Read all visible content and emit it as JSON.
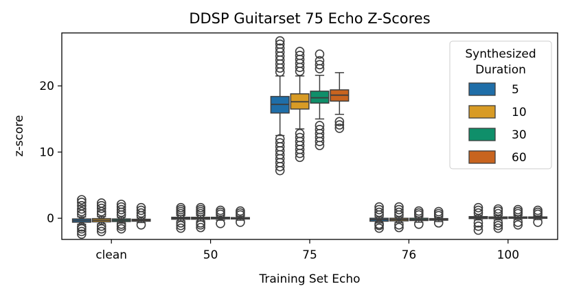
{
  "chart_data": {
    "type": "box",
    "title": "DDSP Guitarset 75 Echo Z-Scores",
    "xlabel": "Training Set Echo",
    "ylabel": "z-score",
    "categories": [
      "clean",
      "50",
      "75",
      "76",
      "100"
    ],
    "ylim": [
      -3.2,
      28
    ],
    "yticks": [
      0,
      10,
      20
    ],
    "legend": {
      "title_lines": [
        "Synthesized",
        "Duration"
      ],
      "placement": "top-right"
    },
    "series": [
      {
        "name": "5",
        "color": "#1f6ea8",
        "boxes": [
          {
            "q1": -0.6,
            "median": -0.35,
            "q3": -0.1,
            "whisker_low": -0.9,
            "whisker_high": 0.2,
            "outliers": [
              -2.4,
              -2.0,
              -1.6,
              -1.3,
              0.6,
              1.0,
              1.4,
              1.9,
              2.4,
              2.8
            ]
          },
          {
            "q1": -0.15,
            "median": 0.0,
            "q3": 0.15,
            "whisker_low": -0.4,
            "whisker_high": 0.4,
            "outliers": [
              -1.5,
              -1.1,
              -0.7,
              0.7,
              1.0,
              1.3,
              1.6
            ]
          },
          {
            "q1": 15.9,
            "median": 17.2,
            "q3": 18.4,
            "whisker_low": 12.5,
            "whisker_high": 21.5,
            "outliers": [
              7.2,
              7.8,
              8.4,
              9.0,
              9.6,
              10.2,
              10.8,
              11.4,
              12.0,
              22.1,
              22.7,
              23.3,
              23.9,
              24.5,
              25.1,
              25.7,
              26.3,
              26.8
            ]
          },
          {
            "q1": -0.45,
            "median": -0.2,
            "q3": 0.0,
            "whisker_low": -0.7,
            "whisker_high": 0.2,
            "outliers": [
              -1.5,
              -1.1,
              -0.9,
              0.5,
              0.9,
              1.3,
              1.7
            ]
          },
          {
            "q1": -0.05,
            "median": 0.1,
            "q3": 0.25,
            "whisker_low": -0.25,
            "whisker_high": 0.45,
            "outliers": [
              -1.8,
              -1.2,
              -0.7,
              0.8,
              1.2,
              1.6
            ]
          }
        ]
      },
      {
        "name": "10",
        "color": "#d89b25",
        "boxes": [
          {
            "q1": -0.55,
            "median": -0.3,
            "q3": -0.05,
            "whisker_low": -0.85,
            "whisker_high": 0.25,
            "outliers": [
              -2.0,
              -1.6,
              -1.2,
              0.6,
              1.0,
              1.5,
              1.9,
              2.3
            ]
          },
          {
            "q1": -0.15,
            "median": 0.0,
            "q3": 0.15,
            "whisker_low": -0.4,
            "whisker_high": 0.4,
            "outliers": [
              -1.4,
              -1.0,
              -0.7,
              0.7,
              1.0,
              1.3,
              1.6
            ]
          },
          {
            "q1": 16.5,
            "median": 17.6,
            "q3": 18.8,
            "whisker_low": 13.5,
            "whisker_high": 21.5,
            "outliers": [
              9.2,
              9.8,
              10.4,
              11.0,
              11.6,
              12.2,
              12.8,
              22.2,
              22.8,
              23.4,
              24.0,
              24.6,
              25.2
            ]
          },
          {
            "q1": -0.4,
            "median": -0.2,
            "q3": 0.0,
            "whisker_low": -0.65,
            "whisker_high": 0.2,
            "outliers": [
              -1.4,
              -1.0,
              0.5,
              0.9,
              1.3,
              1.7
            ]
          },
          {
            "q1": -0.05,
            "median": 0.05,
            "q3": 0.2,
            "whisker_low": -0.25,
            "whisker_high": 0.4,
            "outliers": [
              -1.5,
              -1.1,
              -0.7,
              0.7,
              1.1,
              1.4
            ]
          }
        ]
      },
      {
        "name": "30",
        "color": "#0f8f6a",
        "boxes": [
          {
            "q1": -0.5,
            "median": -0.3,
            "q3": -0.1,
            "whisker_low": -0.75,
            "whisker_high": 0.15,
            "outliers": [
              -1.6,
              -1.2,
              -0.9,
              0.5,
              0.9,
              1.3,
              1.7,
              2.1
            ]
          },
          {
            "q1": -0.1,
            "median": 0.0,
            "q3": 0.15,
            "whisker_low": -0.3,
            "whisker_high": 0.35,
            "outliers": [
              -0.8,
              0.6,
              0.9,
              1.2
            ]
          },
          {
            "q1": 17.4,
            "median": 18.2,
            "q3": 19.2,
            "whisker_low": 15.0,
            "whisker_high": 21.6,
            "outliers": [
              11.0,
              11.6,
              12.2,
              12.8,
              13.4,
              14.0,
              22.6,
              23.2,
              23.8,
              24.8
            ]
          },
          {
            "q1": -0.35,
            "median": -0.2,
            "q3": 0.0,
            "whisker_low": -0.6,
            "whisker_high": 0.2,
            "outliers": [
              -0.9,
              0.5,
              0.8,
              1.1
            ]
          },
          {
            "q1": 0.0,
            "median": 0.1,
            "q3": 0.2,
            "whisker_low": -0.2,
            "whisker_high": 0.4,
            "outliers": [
              -1.0,
              -0.6,
              0.7,
              1.0,
              1.3
            ]
          }
        ]
      },
      {
        "name": "60",
        "color": "#c8641f",
        "boxes": [
          {
            "q1": -0.45,
            "median": -0.3,
            "q3": -0.15,
            "whisker_low": -0.65,
            "whisker_high": 0.05,
            "outliers": [
              -1.0,
              0.4,
              0.8,
              1.2,
              1.6
            ]
          },
          {
            "q1": -0.1,
            "median": 0.0,
            "q3": 0.1,
            "whisker_low": -0.3,
            "whisker_high": 0.3,
            "outliers": [
              -0.6,
              0.5,
              0.8,
              1.1
            ]
          },
          {
            "q1": 17.7,
            "median": 18.6,
            "q3": 19.4,
            "whisker_low": 15.7,
            "whisker_high": 22.0,
            "outliers": [
              13.6,
              14.1,
              14.6
            ]
          },
          {
            "q1": -0.3,
            "median": -0.2,
            "q3": -0.05,
            "whisker_low": -0.5,
            "whisker_high": 0.15,
            "outliers": [
              -0.7,
              0.4,
              0.7,
              1.0
            ]
          },
          {
            "q1": 0.0,
            "median": 0.1,
            "q3": 0.2,
            "whisker_low": -0.2,
            "whisker_high": 0.35,
            "outliers": [
              -0.6,
              0.6,
              0.9,
              1.2
            ]
          }
        ]
      }
    ]
  }
}
